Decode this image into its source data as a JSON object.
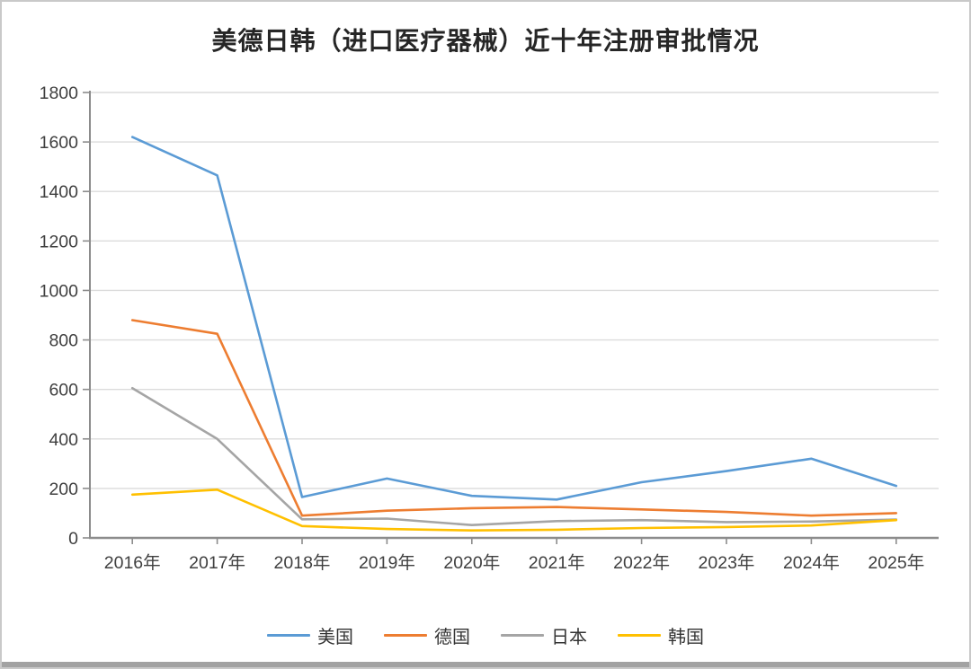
{
  "window": {
    "background": "#ffffff",
    "border_color": "#c9c9c9",
    "bottom_bar_color": "#a2a2a2"
  },
  "chart_data": {
    "type": "line",
    "title": "美德日韩（进口医疗器械）近十年注册审批情况",
    "categories": [
      "2016年",
      "2017年",
      "2018年",
      "2019年",
      "2020年",
      "2021年",
      "2022年",
      "2023年",
      "2024年",
      "2025年"
    ],
    "series": [
      {
        "name": "美国",
        "color": "#5B9BD5",
        "values": [
          1620,
          1465,
          165,
          240,
          170,
          155,
          225,
          270,
          320,
          210
        ]
      },
      {
        "name": "德国",
        "color": "#ED7D31",
        "values": [
          880,
          825,
          90,
          110,
          120,
          125,
          115,
          105,
          90,
          100
        ]
      },
      {
        "name": "日本",
        "color": "#A5A5A5",
        "values": [
          605,
          400,
          75,
          78,
          52,
          68,
          72,
          64,
          66,
          74
        ]
      },
      {
        "name": "韩国",
        "color": "#FFC000",
        "values": [
          175,
          195,
          48,
          36,
          30,
          33,
          40,
          44,
          50,
          72
        ]
      }
    ],
    "xlabel": "",
    "ylabel": "",
    "ylim": [
      0,
      1800
    ],
    "ytick_step": 200,
    "grid": true,
    "legend_position": "bottom",
    "axis_color": "#8c8c8c",
    "grid_color": "#dcdcdc",
    "tick_label_color": "#404040"
  }
}
